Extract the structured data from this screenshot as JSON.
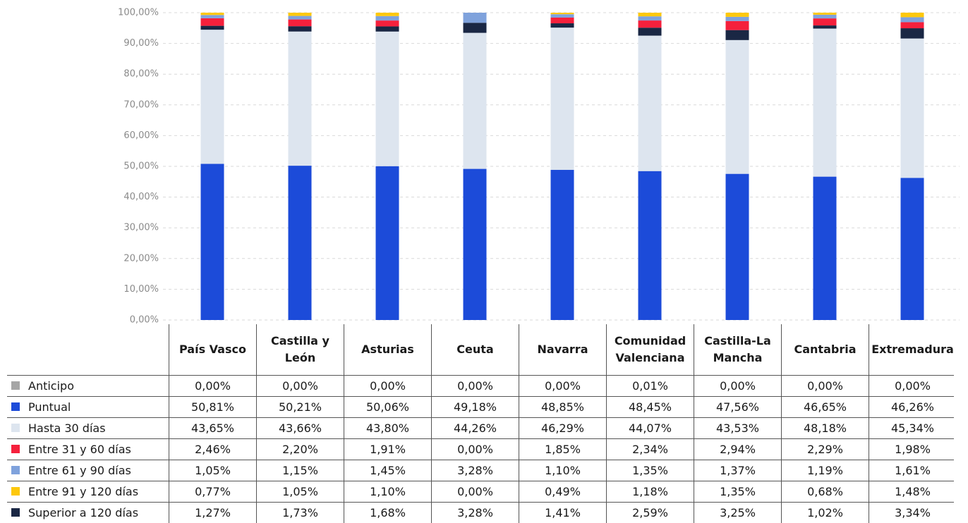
{
  "chart_data": {
    "type": "stacked-bar",
    "categories": [
      "País Vasco",
      "Castilla y León",
      "Asturias",
      "Ceuta",
      "Navarra",
      "Comunidad Valenciana",
      "Castilla-La Mancha",
      "Cantabria",
      "Extremadura"
    ],
    "ylim": [
      0,
      100
    ],
    "yticks": [
      {
        "value": 0,
        "label": "0,00%"
      },
      {
        "value": 10,
        "label": "10,00%"
      },
      {
        "value": 20,
        "label": "20,00%"
      },
      {
        "value": 30,
        "label": "30,00%"
      },
      {
        "value": 40,
        "label": "40,00%"
      },
      {
        "value": 50,
        "label": "50,00%"
      },
      {
        "value": 60,
        "label": "60,00%"
      },
      {
        "value": 70,
        "label": "70,00%"
      },
      {
        "value": 80,
        "label": "80,00%"
      },
      {
        "value": 90,
        "label": "90,00%"
      },
      {
        "value": 100,
        "label": "100,00%"
      }
    ],
    "grid": true,
    "series": [
      {
        "name": "Anticipo",
        "color": "#a6a6a6",
        "values": [
          0,
          0,
          0,
          0,
          0,
          0.01,
          0,
          0,
          0
        ],
        "value_labels": [
          "0,00%",
          "0,00%",
          "0,00%",
          "0,00%",
          "0,00%",
          "0,01%",
          "0,00%",
          "0,00%",
          "0,00%"
        ]
      },
      {
        "name": "Puntual",
        "color": "#1c4bd9",
        "values": [
          50.81,
          50.21,
          50.06,
          49.18,
          48.85,
          48.45,
          47.56,
          46.65,
          46.26
        ],
        "value_labels": [
          "50,81%",
          "50,21%",
          "50,06%",
          "49,18%",
          "48,85%",
          "48,45%",
          "47,56%",
          "46,65%",
          "46,26%"
        ]
      },
      {
        "name": "Hasta 30 días",
        "color": "#dde5ef",
        "values": [
          43.65,
          43.66,
          43.8,
          44.26,
          46.29,
          44.07,
          43.53,
          48.18,
          45.34
        ],
        "value_labels": [
          "43,65%",
          "43,66%",
          "43,80%",
          "44,26%",
          "46,29%",
          "44,07%",
          "43,53%",
          "48,18%",
          "45,34%"
        ]
      },
      {
        "name": "Entre 31 y 60 días",
        "color": "#f5203c",
        "values": [
          2.46,
          2.2,
          1.91,
          0,
          1.85,
          2.34,
          2.94,
          2.29,
          1.98
        ],
        "value_labels": [
          "2,46%",
          "2,20%",
          "1,91%",
          "0,00%",
          "1,85%",
          "2,34%",
          "2,94%",
          "2,29%",
          "1,98%"
        ]
      },
      {
        "name": "Entre 61 y 90 días",
        "color": "#7fa2dc",
        "values": [
          1.05,
          1.15,
          1.45,
          3.28,
          1.1,
          1.35,
          1.37,
          1.19,
          1.61
        ],
        "value_labels": [
          "1,05%",
          "1,15%",
          "1,45%",
          "3,28%",
          "1,10%",
          "1,35%",
          "1,37%",
          "1,19%",
          "1,61%"
        ]
      },
      {
        "name": "Entre 91 y 120 días",
        "color": "#fdc80c",
        "values": [
          0.77,
          1.05,
          1.1,
          0,
          0.49,
          1.18,
          1.35,
          0.68,
          1.48
        ],
        "value_labels": [
          "0,77%",
          "1,05%",
          "1,10%",
          "0,00%",
          "0,49%",
          "1,18%",
          "1,35%",
          "0,68%",
          "1,48%"
        ]
      },
      {
        "name": "Superior a 120 días",
        "color": "#1a2744",
        "values": [
          1.27,
          1.73,
          1.68,
          3.28,
          1.41,
          2.59,
          3.25,
          1.02,
          3.34
        ],
        "value_labels": [
          "1,27%",
          "1,73%",
          "1,68%",
          "3,28%",
          "1,41%",
          "2,59%",
          "3,25%",
          "1,02%",
          "3,34%"
        ]
      }
    ]
  }
}
